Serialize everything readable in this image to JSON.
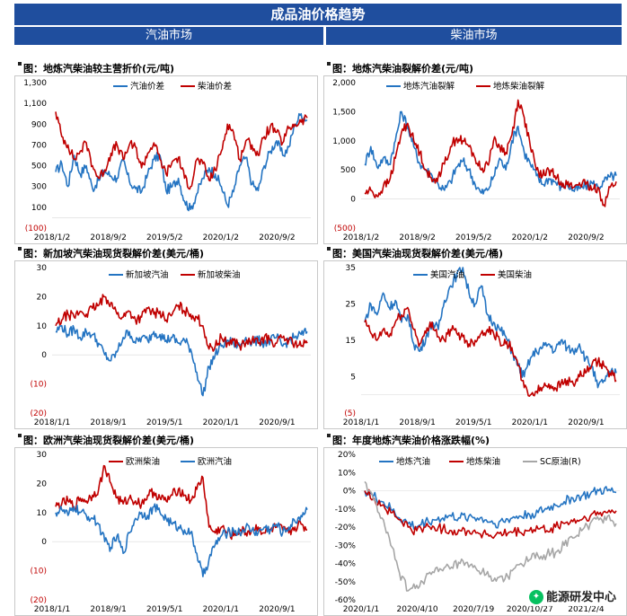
{
  "header": {
    "title": "成品油价格趋势",
    "left_section": "汽油市场",
    "right_section": "柴油市场"
  },
  "watermark": "能源研发中心",
  "colors": {
    "blue": "#2474c2",
    "red": "#c00000",
    "gray": "#a6a6a6",
    "header_bg": "#1f4e9e"
  },
  "chart_data": [
    {
      "type": "line",
      "title": "图：地炼汽柴油较主营折价(元/吨)",
      "y_ticks": [
        "1,300",
        "1,100",
        "900",
        "700",
        "500",
        "300",
        "100",
        "(100)"
      ],
      "ylim": [
        -100,
        1300
      ],
      "x_ticks": [
        "2018/1/2",
        "2018/9/2",
        "2019/5/2",
        "2020/1/2",
        "2020/9/2"
      ],
      "x_range": [
        "2018-01-02",
        "2021-04-15"
      ],
      "series": [
        {
          "name": "汽油价差",
          "color": "blue",
          "values": [
            440,
            520,
            300,
            600,
            420,
            500,
            280,
            360,
            450,
            400,
            380,
            550,
            350,
            280,
            250,
            420,
            560,
            600,
            260,
            300,
            380,
            160,
            80,
            230,
            380,
            480,
            420,
            300,
            120,
            250,
            500,
            580,
            320,
            260,
            500,
            640,
            740,
            600,
            680,
            900,
            1000,
            940
          ]
        },
        {
          "name": "柴油价差",
          "color": "red",
          "values": [
            1020,
            780,
            700,
            560,
            640,
            720,
            500,
            380,
            460,
            620,
            700,
            560,
            700,
            680,
            480,
            620,
            720,
            560,
            420,
            540,
            580,
            380,
            300,
            560,
            520,
            360,
            460,
            640,
            900,
            820,
            560,
            740,
            700,
            600,
            780,
            880,
            820,
            720,
            860,
            900,
            920,
            960
          ]
        }
      ]
    },
    {
      "type": "line",
      "title": "图：地炼汽柴油裂解价差(元/吨)",
      "y_ticks": [
        "2,000",
        "1,500",
        "1,000",
        "500",
        "0",
        "(500)"
      ],
      "ylim": [
        -500,
        2000
      ],
      "x_ticks": [
        "2018/1/2",
        "2018/9/2",
        "2019/5/2",
        "2020/1/2",
        "2020/9/2"
      ],
      "x_range": [
        "2018-01-02",
        "2021-04-15"
      ],
      "series": [
        {
          "name": "地炼汽油裂解",
          "color": "blue",
          "values": [
            600,
            900,
            550,
            700,
            600,
            1000,
            1500,
            1250,
            900,
            600,
            500,
            400,
            250,
            150,
            300,
            550,
            650,
            500,
            250,
            100,
            150,
            380,
            700,
            500,
            1000,
            1250,
            800,
            600,
            400,
            250,
            350,
            300,
            200,
            250,
            150,
            180,
            220,
            280,
            200,
            300,
            380,
            400
          ]
        },
        {
          "name": "地炼柴油裂解",
          "color": "red",
          "values": [
            100,
            150,
            50,
            200,
            300,
            700,
            1150,
            1300,
            1000,
            800,
            500,
            300,
            400,
            600,
            900,
            1050,
            1000,
            900,
            700,
            500,
            600,
            1000,
            900,
            800,
            1100,
            1700,
            1400,
            900,
            500,
            400,
            500,
            400,
            300,
            250,
            200,
            280,
            250,
            150,
            200,
            -100,
            200,
            300
          ]
        }
      ]
    },
    {
      "type": "line",
      "title": "图：新加坡汽柴油现货裂解价差(美元/桶)",
      "y_ticks": [
        "30",
        "20",
        "10",
        "0",
        "(10)",
        "(20)"
      ],
      "ylim": [
        -20,
        30
      ],
      "x_ticks": [
        "2018/1/1",
        "2018/9/1",
        "2019/5/1",
        "2020/1/1",
        "2020/9/1"
      ],
      "x_range": [
        "2018-01-01",
        "2021-04-15"
      ],
      "series": [
        {
          "name": "新加坡汽油",
          "color": "blue",
          "values": [
            8,
            10,
            7,
            9,
            6,
            8,
            7,
            4,
            0,
            -2,
            1,
            6,
            8,
            4,
            6,
            5,
            8,
            7,
            5,
            6,
            4,
            5,
            2,
            -6,
            -14,
            -4,
            0,
            3,
            5,
            4,
            3,
            6,
            4,
            5,
            4,
            5,
            6,
            3,
            5,
            6,
            7,
            8
          ]
        },
        {
          "name": "新加坡柴油",
          "color": "red",
          "values": [
            10,
            12,
            14,
            13,
            15,
            14,
            16,
            17,
            20,
            18,
            14,
            13,
            15,
            12,
            13,
            16,
            14,
            15,
            12,
            14,
            17,
            15,
            14,
            13,
            10,
            2,
            3,
            6,
            4,
            5,
            3,
            4,
            5,
            4,
            6,
            5,
            4,
            6,
            5,
            4,
            3,
            4
          ]
        }
      ]
    },
    {
      "type": "line",
      "title": "图：美国汽柴油现货裂解价差(美元/桶)",
      "y_ticks": [
        "35",
        "25",
        "15",
        "5",
        "(5)"
      ],
      "ylim": [
        -5,
        35
      ],
      "x_ticks": [
        "2018/1/1",
        "2018/9/1",
        "2019/5/1",
        "2020/1/1",
        "2020/9/1"
      ],
      "x_range": [
        "2018-01-01",
        "2021-04-15"
      ],
      "series": [
        {
          "name": "美国汽油",
          "color": "blue",
          "values": [
            20,
            25,
            22,
            28,
            24,
            26,
            20,
            22,
            14,
            12,
            16,
            20,
            18,
            26,
            30,
            33,
            35,
            28,
            25,
            30,
            22,
            20,
            18,
            16,
            12,
            8,
            5,
            10,
            12,
            13,
            14,
            12,
            15,
            13,
            12,
            14,
            10,
            8,
            2,
            4,
            6,
            6
          ]
        },
        {
          "name": "美国柴油",
          "color": "red",
          "values": [
            20,
            17,
            15,
            18,
            16,
            20,
            22,
            24,
            18,
            14,
            17,
            20,
            16,
            15,
            18,
            17,
            16,
            14,
            15,
            17,
            18,
            17,
            15,
            14,
            13,
            8,
            2,
            0,
            1,
            2,
            3,
            2,
            3,
            4,
            3,
            5,
            6,
            8,
            9,
            8,
            6,
            4
          ]
        }
      ]
    },
    {
      "type": "line",
      "title": "图：欧洲汽柴油现货裂解价差(美元/桶)",
      "y_ticks": [
        "30",
        "20",
        "10",
        "0",
        "(10)",
        "(20)"
      ],
      "ylim": [
        -20,
        30
      ],
      "x_ticks": [
        "2018/1/1",
        "2018/9/1",
        "2019/5/1",
        "2020/1/1",
        "2020/9/1"
      ],
      "x_range": [
        "2018-01-01",
        "2021-04-15"
      ],
      "series": [
        {
          "name": "欧洲柴油",
          "color": "red",
          "values": [
            12,
            13,
            14,
            12,
            15,
            14,
            16,
            18,
            26,
            20,
            15,
            13,
            15,
            14,
            13,
            16,
            17,
            15,
            14,
            16,
            18,
            16,
            14,
            18,
            22,
            5,
            3,
            5,
            3,
            2,
            4,
            3,
            4,
            5,
            3,
            4,
            5,
            4,
            3,
            5,
            6,
            4
          ]
        },
        {
          "name": "欧洲汽油",
          "color": "blue",
          "values": [
            10,
            11,
            9,
            12,
            10,
            9,
            8,
            6,
            0,
            -2,
            2,
            -4,
            3,
            8,
            10,
            9,
            12,
            10,
            8,
            6,
            5,
            4,
            3,
            -4,
            -12,
            -6,
            -1,
            2,
            3,
            4,
            3,
            5,
            4,
            3,
            5,
            4,
            6,
            3,
            5,
            7,
            9,
            11
          ]
        }
      ]
    },
    {
      "type": "line",
      "title": "图：年度地炼汽柴油价格涨跌幅(%)",
      "y_ticks": [
        "20%",
        "10%",
        "0%",
        "-10%",
        "-20%",
        "-30%",
        "-40%",
        "-50%",
        "-60%"
      ],
      "ylim": [
        -60,
        20
      ],
      "x_ticks": [
        "2020/1/1",
        "2020/4/10",
        "2020/7/19",
        "2020/10/27",
        "2021/2/4"
      ],
      "x_range": [
        "2020-01-01",
        "2021-04-15"
      ],
      "series": [
        {
          "name": "地炼汽油",
          "color": "blue",
          "values": [
            0,
            -3,
            -6,
            -10,
            -15,
            -18,
            -20,
            -17,
            -16,
            -15,
            -14,
            -15,
            -14,
            -15,
            -16,
            -18,
            -17,
            -15,
            -14,
            -13,
            -12,
            -10,
            -8,
            -6,
            -4,
            -3,
            -2,
            0,
            0,
            -1
          ]
        },
        {
          "name": "地炼柴油",
          "color": "red",
          "values": [
            0,
            -4,
            -8,
            -12,
            -16,
            -20,
            -22,
            -20,
            -20,
            -21,
            -22,
            -22,
            -22,
            -23,
            -24,
            -25,
            -24,
            -23,
            -23,
            -22,
            -21,
            -22,
            -20,
            -18,
            -17,
            -16,
            -14,
            -13,
            -12,
            -11
          ]
        },
        {
          "name": "SC原油(R)",
          "color": "gray",
          "values": [
            5,
            -5,
            -15,
            -30,
            -45,
            -55,
            -52,
            -48,
            -45,
            -44,
            -42,
            -40,
            -42,
            -44,
            -46,
            -48,
            -50,
            -44,
            -40,
            -38,
            -36,
            -35,
            -34,
            -30,
            -26,
            -22,
            -18,
            -16,
            -14,
            -18
          ]
        }
      ]
    }
  ]
}
